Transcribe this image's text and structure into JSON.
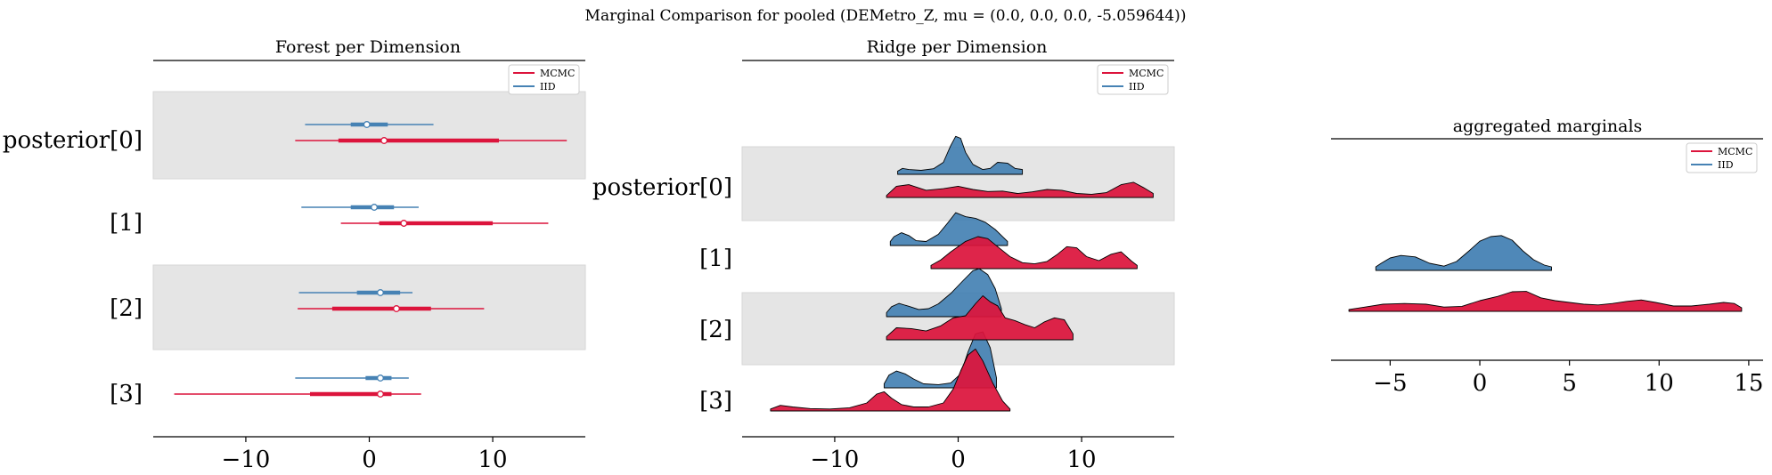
{
  "figure": {
    "suptitle": "Marginal Comparison for pooled (DEMetro_Z, mu = (0.0, 0.0, 0.0, -5.059644))"
  },
  "colors": {
    "mcmc": "#dc143c",
    "iid": "#4682b4",
    "band": "#e5e5e5"
  },
  "chart_data": [
    {
      "type": "forest",
      "title": "Forest per Dimension",
      "legend": [
        "MCMC",
        "IID"
      ],
      "legend_loc": "upper right",
      "xlim": [
        -17.5,
        17.5
      ],
      "xticks": [
        -10,
        0,
        10
      ],
      "xtick_labels": [
        "−10",
        "0",
        "10"
      ],
      "ylabels": [
        "posterior[0]",
        "[1]",
        "[2]",
        "[3]"
      ],
      "series": [
        {
          "name": "IID",
          "color": "#4682b4",
          "dims": [
            {
              "hdi94": [
                -5.2,
                5.2
              ],
              "iqr": [
                -1.5,
                1.5
              ],
              "median": -0.2
            },
            {
              "hdi94": [
                -5.5,
                4.0
              ],
              "iqr": [
                -1.5,
                2.0
              ],
              "median": 0.4
            },
            {
              "hdi94": [
                -5.7,
                3.5
              ],
              "iqr": [
                -1.0,
                2.5
              ],
              "median": 0.9
            },
            {
              "hdi94": [
                -6.0,
                3.2
              ],
              "iqr": [
                -0.3,
                1.8
              ],
              "median": 0.9
            }
          ]
        },
        {
          "name": "MCMC",
          "color": "#dc143c",
          "dims": [
            {
              "hdi94": [
                -6.0,
                16.0
              ],
              "iqr": [
                -2.5,
                10.5
              ],
              "median": 1.2
            },
            {
              "hdi94": [
                -2.3,
                14.5
              ],
              "iqr": [
                0.8,
                10.0
              ],
              "median": 2.8
            },
            {
              "hdi94": [
                -5.8,
                9.3
              ],
              "iqr": [
                -3.0,
                5.0
              ],
              "median": 2.2
            },
            {
              "hdi94": [
                -15.8,
                4.2
              ],
              "iqr": [
                -4.8,
                1.8
              ],
              "median": 0.9
            }
          ]
        }
      ]
    },
    {
      "type": "ridgeline",
      "title": "Ridge per Dimension",
      "legend": [
        "MCMC",
        "IID"
      ],
      "legend_loc": "upper right",
      "xlim": [
        -17.5,
        17.5
      ],
      "xticks": [
        -10,
        0,
        10
      ],
      "xtick_labels": [
        "−10",
        "0",
        "10"
      ],
      "ylabels": [
        "posterior[0]",
        "[1]",
        "[2]",
        "[3]"
      ],
      "series": [
        {
          "name": "IID",
          "color": "#4682b4",
          "dims": [
            {
              "x": [
                -4.9,
                -4.5,
                -4.0,
                -3.0,
                -2.0,
                -1.2,
                -0.6,
                -0.2,
                0.2,
                0.6,
                1.2,
                2.0,
                2.6,
                3.2,
                4.0,
                4.6,
                5.2
              ],
              "y": [
                0.08,
                0.15,
                0.12,
                0.1,
                0.14,
                0.3,
                0.72,
                0.95,
                0.9,
                0.55,
                0.25,
                0.12,
                0.15,
                0.3,
                0.28,
                0.15,
                0.12
              ]
            },
            {
              "x": [
                -5.5,
                -5.2,
                -4.6,
                -4.0,
                -3.4,
                -2.6,
                -1.6,
                -0.8,
                -0.2,
                0.6,
                1.4,
                2.2,
                3.0,
                3.6,
                4.0
              ],
              "y": [
                0.1,
                0.22,
                0.32,
                0.25,
                0.12,
                0.1,
                0.28,
                0.58,
                0.82,
                0.72,
                0.68,
                0.58,
                0.4,
                0.22,
                0.1
              ]
            },
            {
              "x": [
                -5.8,
                -5.4,
                -4.8,
                -4.0,
                -3.2,
                -2.4,
                -1.6,
                -0.6,
                0.4,
                1.2,
                1.7,
                2.4,
                3.0,
                3.5
              ],
              "y": [
                0.1,
                0.25,
                0.33,
                0.26,
                0.18,
                0.2,
                0.32,
                0.58,
                0.9,
                1.15,
                1.2,
                1.05,
                0.7,
                0.2
              ]
            },
            {
              "x": [
                -6.0,
                -5.6,
                -5.0,
                -4.3,
                -3.6,
                -2.8,
                -1.6,
                -0.6,
                0.2,
                0.8,
                1.4,
                2.0,
                2.6,
                3.1
              ],
              "y": [
                0.1,
                0.32,
                0.42,
                0.35,
                0.22,
                0.1,
                0.08,
                0.12,
                0.35,
                0.9,
                1.35,
                1.4,
                1.0,
                0.25
              ]
            }
          ]
        },
        {
          "name": "MCMC",
          "color": "#dc143c",
          "dims": [
            {
              "x": [
                -5.8,
                -5.0,
                -4.0,
                -2.6,
                -1.2,
                0.0,
                1.2,
                2.4,
                3.6,
                4.8,
                6.0,
                7.2,
                8.4,
                9.6,
                10.8,
                12.0,
                13.2,
                14.2,
                15.0,
                15.8
              ],
              "y": [
                0.05,
                0.28,
                0.32,
                0.18,
                0.22,
                0.28,
                0.2,
                0.15,
                0.16,
                0.1,
                0.14,
                0.2,
                0.18,
                0.1,
                0.08,
                0.12,
                0.32,
                0.38,
                0.25,
                0.1
              ]
            },
            {
              "x": [
                -2.2,
                -1.4,
                -0.6,
                0.6,
                1.6,
                2.4,
                3.2,
                4.2,
                5.2,
                6.2,
                7.2,
                8.0,
                8.8,
                9.6,
                10.4,
                11.4,
                12.4,
                13.2,
                14.0,
                14.5
              ],
              "y": [
                0.08,
                0.22,
                0.42,
                0.68,
                0.8,
                0.75,
                0.55,
                0.3,
                0.15,
                0.12,
                0.18,
                0.35,
                0.55,
                0.52,
                0.3,
                0.2,
                0.36,
                0.42,
                0.2,
                0.08
              ]
            },
            {
              "x": [
                -5.8,
                -5.0,
                -3.8,
                -2.6,
                -1.4,
                -0.4,
                0.6,
                1.4,
                2.0,
                2.6,
                3.2,
                3.8,
                4.6,
                5.4,
                6.2,
                7.0,
                7.8,
                8.6,
                9.3
              ],
              "y": [
                0.08,
                0.3,
                0.28,
                0.22,
                0.35,
                0.55,
                0.6,
                0.9,
                1.1,
                0.95,
                0.85,
                0.55,
                0.48,
                0.38,
                0.3,
                0.45,
                0.55,
                0.5,
                0.15
              ]
            },
            {
              "x": [
                -15.2,
                -14.4,
                -13.4,
                -12.0,
                -10.4,
                -8.8,
                -7.4,
                -6.6,
                -6.0,
                -5.4,
                -4.6,
                -3.6,
                -2.4,
                -1.2,
                -0.4,
                0.2,
                0.8,
                1.4,
                2.0,
                2.8,
                3.6,
                4.2
              ],
              "y": [
                0.05,
                0.14,
                0.1,
                0.06,
                0.05,
                0.08,
                0.2,
                0.42,
                0.48,
                0.32,
                0.16,
                0.1,
                0.1,
                0.2,
                0.55,
                1.0,
                1.4,
                1.55,
                1.25,
                0.7,
                0.25,
                0.05
              ]
            }
          ]
        }
      ]
    },
    {
      "type": "ridgeline",
      "title": "aggregated marginals",
      "legend": [
        "MCMC",
        "IID"
      ],
      "legend_loc": "upper right",
      "xlim": [
        -8.3,
        15.8
      ],
      "xticks": [
        -5,
        0,
        5,
        10,
        15
      ],
      "xtick_labels": [
        "−5",
        "0",
        "5",
        "10",
        "15"
      ],
      "series": [
        {
          "name": "IID",
          "color": "#4682b4",
          "x": [
            -5.8,
            -5.5,
            -5.0,
            -4.4,
            -3.6,
            -2.8,
            -2.0,
            -1.3,
            -0.6,
            0.0,
            0.6,
            1.2,
            1.8,
            2.4,
            3.0,
            3.6,
            4.0
          ],
          "y": [
            0.1,
            0.2,
            0.35,
            0.42,
            0.38,
            0.2,
            0.12,
            0.25,
            0.55,
            0.82,
            0.95,
            0.98,
            0.85,
            0.55,
            0.3,
            0.15,
            0.1
          ]
        },
        {
          "name": "MCMC",
          "color": "#dc143c",
          "x": [
            -7.3,
            -6.4,
            -5.4,
            -4.2,
            -3.0,
            -2.0,
            -1.0,
            0.0,
            1.0,
            1.8,
            2.6,
            3.4,
            4.2,
            5.0,
            5.8,
            6.6,
            7.4,
            8.2,
            9.0,
            9.8,
            10.8,
            11.8,
            12.8,
            13.6,
            14.2,
            14.6
          ],
          "y": [
            0.05,
            0.12,
            0.2,
            0.22,
            0.2,
            0.12,
            0.14,
            0.3,
            0.42,
            0.55,
            0.56,
            0.38,
            0.3,
            0.25,
            0.2,
            0.18,
            0.22,
            0.28,
            0.32,
            0.25,
            0.15,
            0.15,
            0.2,
            0.25,
            0.22,
            0.1
          ]
        }
      ]
    }
  ]
}
